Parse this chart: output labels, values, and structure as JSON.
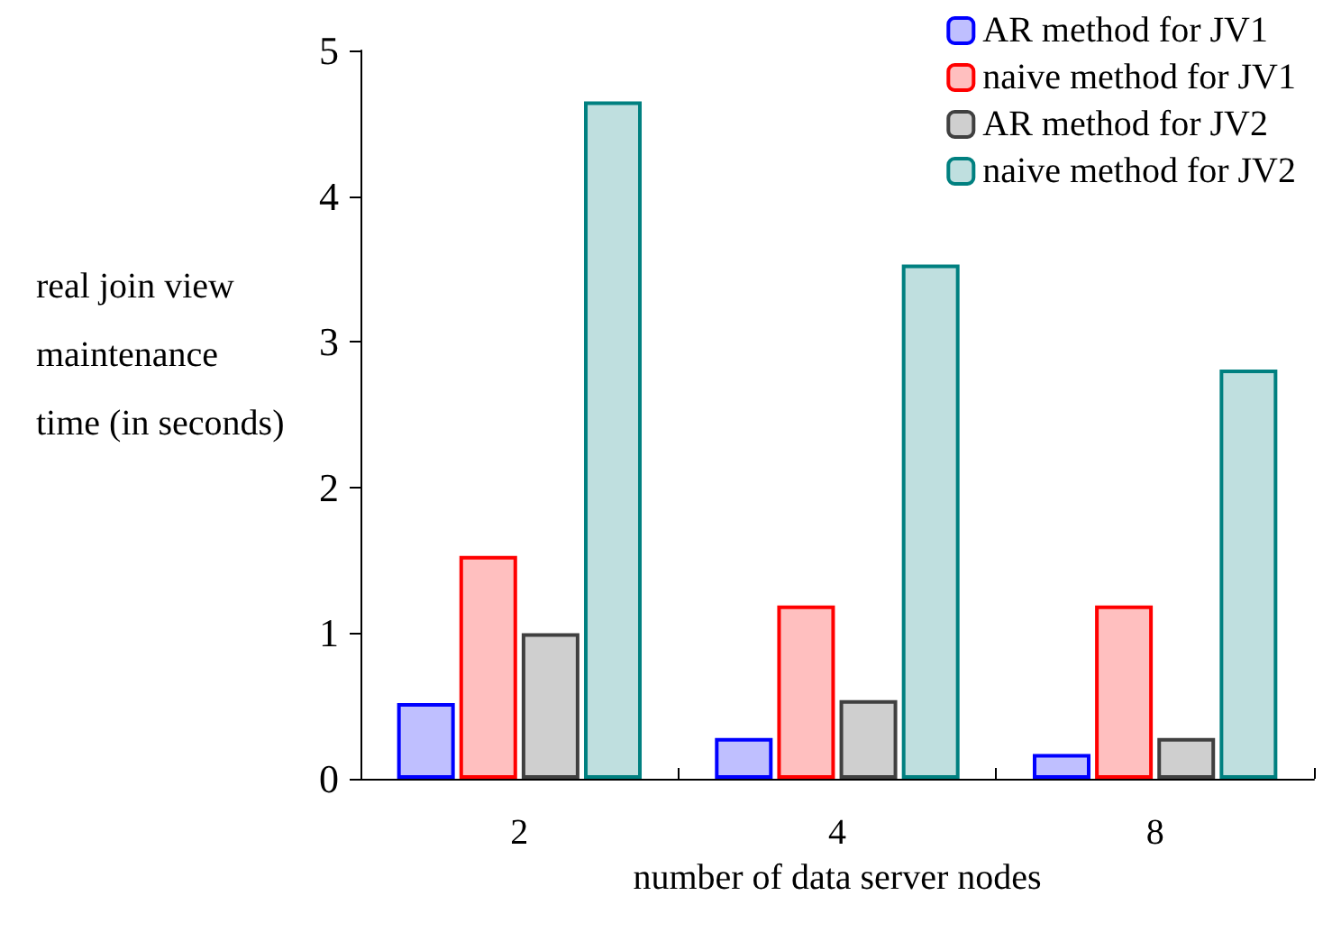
{
  "chart_data": {
    "type": "bar",
    "xlabel": "number of data server nodes",
    "ylabel": "real join view maintenance time (in seconds)",
    "categories": [
      "2",
      "4",
      "8"
    ],
    "series": [
      {
        "name": "AR method for JV1",
        "color": "#0000ff",
        "values": [
          0.52,
          0.28,
          0.17
        ]
      },
      {
        "name": "naive method for JV1",
        "color": "#ff0000",
        "values": [
          1.53,
          1.19,
          1.19
        ]
      },
      {
        "name": "AR method for JV2",
        "color": "#404040",
        "values": [
          1.0,
          0.54,
          0.28
        ]
      },
      {
        "name": "naive method for JV2",
        "color": "#008080",
        "values": [
          4.65,
          3.53,
          2.81
        ]
      }
    ],
    "ylim": [
      0,
      5
    ],
    "yticks": [
      0,
      1,
      2,
      3,
      4,
      5
    ],
    "grid": false,
    "legend": "top right"
  }
}
